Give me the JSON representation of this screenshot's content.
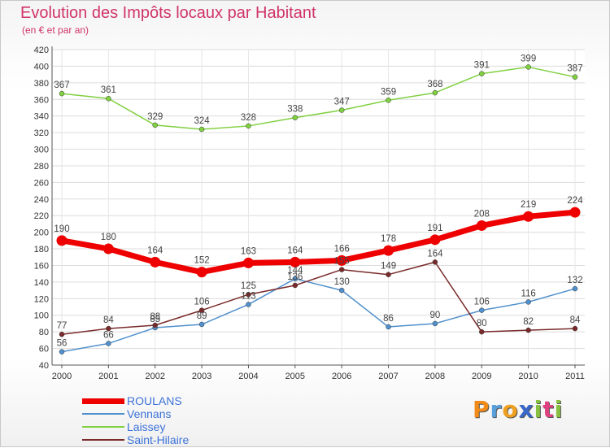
{
  "title": "Evolution des Impôts locaux par Habitant",
  "subtitle": "(en € et par an)",
  "logo": {
    "text": "Proxiti",
    "letters": [
      {
        "ch": "P",
        "color": "#f08a18"
      },
      {
        "ch": "r",
        "color": "#5aa0dc"
      },
      {
        "ch": "o",
        "color": "#f0a020"
      },
      {
        "ch": "x",
        "color": "#3a68c8"
      },
      {
        "ch": "i",
        "color": "#88c040"
      },
      {
        "ch": "t",
        "color": "#e04080"
      },
      {
        "ch": "i",
        "color": "#88c040"
      }
    ]
  },
  "chart_data": {
    "type": "line",
    "title": "Evolution des Impôts locaux par Habitant",
    "subtitle": "(en € et par an)",
    "xlabel": "",
    "ylabel": "",
    "x": [
      "2000",
      "2001",
      "2002",
      "2003",
      "2004",
      "2005",
      "2006",
      "2007",
      "2008",
      "2009",
      "2010",
      "2011"
    ],
    "ylim": [
      40,
      420
    ],
    "yticks": [
      40,
      60,
      80,
      100,
      120,
      140,
      160,
      180,
      200,
      220,
      240,
      260,
      280,
      300,
      320,
      340,
      360,
      380,
      400,
      420
    ],
    "grid": true,
    "legend_position": "bottom-left",
    "series": [
      {
        "name": "ROULANS",
        "color": "#ee0000",
        "emphasis": true,
        "values": [
          190,
          180,
          164,
          152,
          163,
          164,
          166,
          178,
          191,
          208,
          219,
          224
        ]
      },
      {
        "name": "Vennans",
        "color": "#5090cc",
        "emphasis": false,
        "values": [
          56,
          66,
          85,
          89,
          113,
          144,
          130,
          86,
          90,
          106,
          116,
          132
        ]
      },
      {
        "name": "Laissey",
        "color": "#80d040",
        "emphasis": false,
        "values": [
          367,
          361,
          329,
          324,
          328,
          338,
          347,
          359,
          368,
          391,
          399,
          387
        ]
      },
      {
        "name": "Saint-Hilaire",
        "color": "#7a2a2a",
        "emphasis": false,
        "values": [
          77,
          84,
          88,
          106,
          125,
          136,
          155,
          149,
          164,
          80,
          82,
          84
        ]
      }
    ]
  }
}
